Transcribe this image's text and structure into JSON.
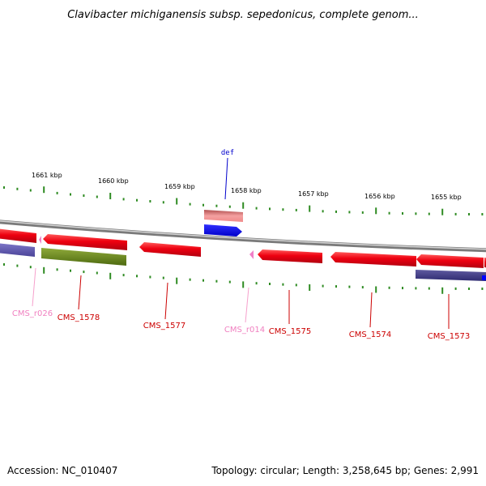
{
  "title": "Clavibacter michiganensis subsp. sepedonicus, complete genom...",
  "footer": {
    "accession": "Accession: NC_010407",
    "stats": "Topology: circular; Length: 3,258,645 bp; Genes: 2,991"
  },
  "colors": {
    "cds": "#e8001a",
    "rna": "#f070c0",
    "blue_feature": "#0000ff",
    "olive_feature": "#6b8e23",
    "purple_feature": "#6a5acd",
    "ticks": "#2e8b22",
    "backbone": "#8c8c8c"
  },
  "ticks": [
    "1661 kbp",
    "1660 kbp",
    "1659 kbp",
    "1658 kbp",
    "1657 kbp",
    "1656 kbp",
    "1655 kbp"
  ],
  "labels": {
    "def": "def",
    "cms_r026": "CMS_r026",
    "cms_1578": "CMS_1578",
    "cms_1577": "CMS_1577",
    "cms_r014": "CMS_r014",
    "cms_1575": "CMS_1575",
    "cms_1574": "CMS_1574",
    "cms_1573": "CMS_1573"
  }
}
